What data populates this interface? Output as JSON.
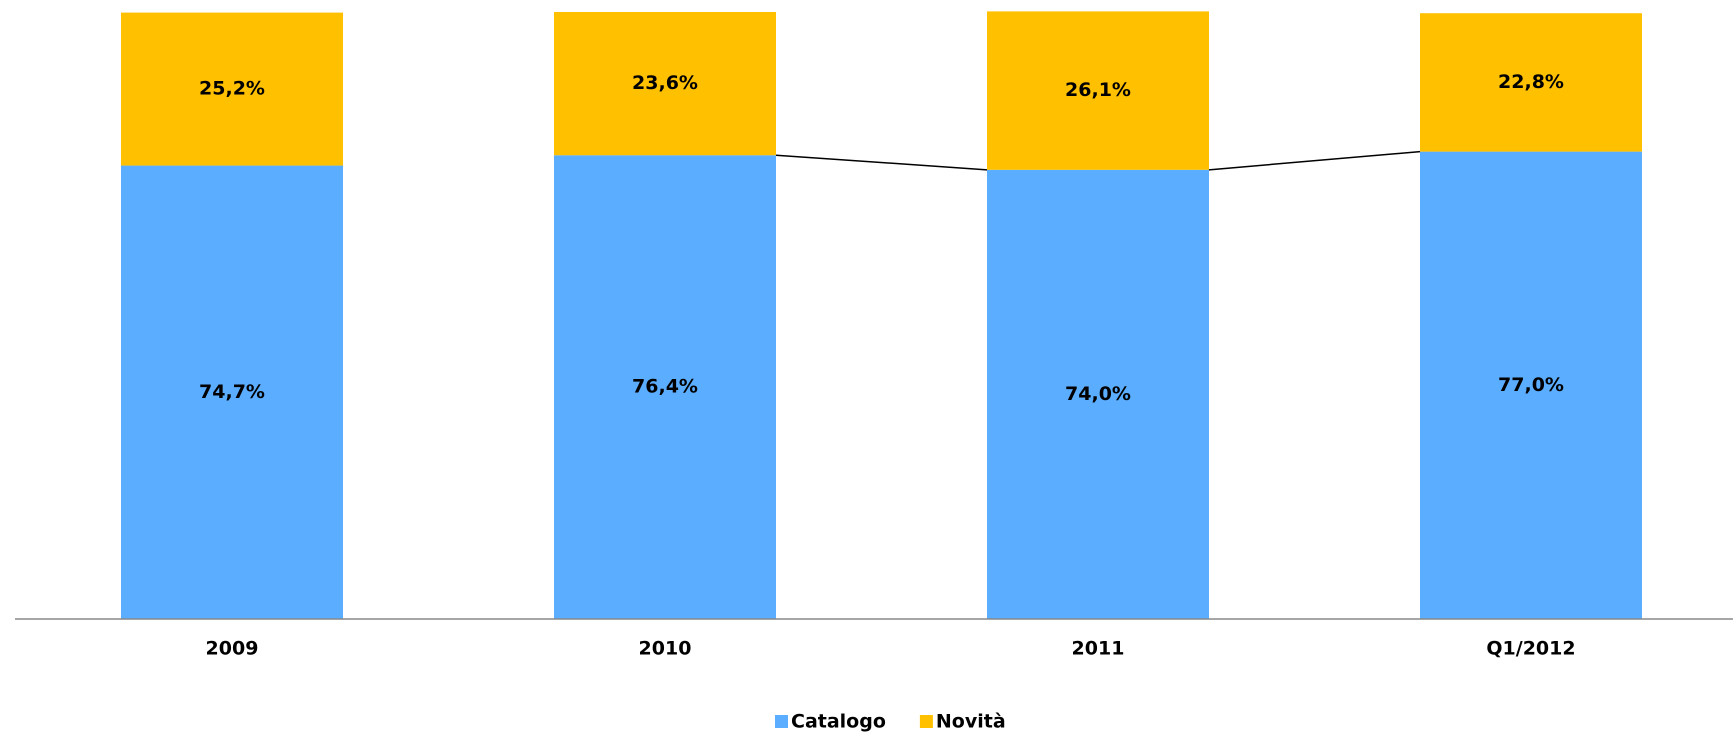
{
  "chart_data": {
    "type": "stacked_bar",
    "categories": [
      "2009",
      "2010",
      "2011",
      "Q1/2012"
    ],
    "series": [
      {
        "name": "Catalogo",
        "color": "#5badff",
        "values": [
          74.7,
          76.4,
          74.0,
          77.0
        ],
        "value_labels": [
          "74,7%",
          "76,4%",
          "74,0%",
          "77,0%"
        ]
      },
      {
        "name": "Novità",
        "color": "#ffc000",
        "values": [
          25.2,
          23.6,
          26.1,
          22.8
        ],
        "value_labels": [
          "25,2%",
          "23,6%",
          "26,1%",
          "22,8%"
        ]
      }
    ],
    "ylim": [
      0,
      100
    ],
    "legend": "bottom"
  }
}
